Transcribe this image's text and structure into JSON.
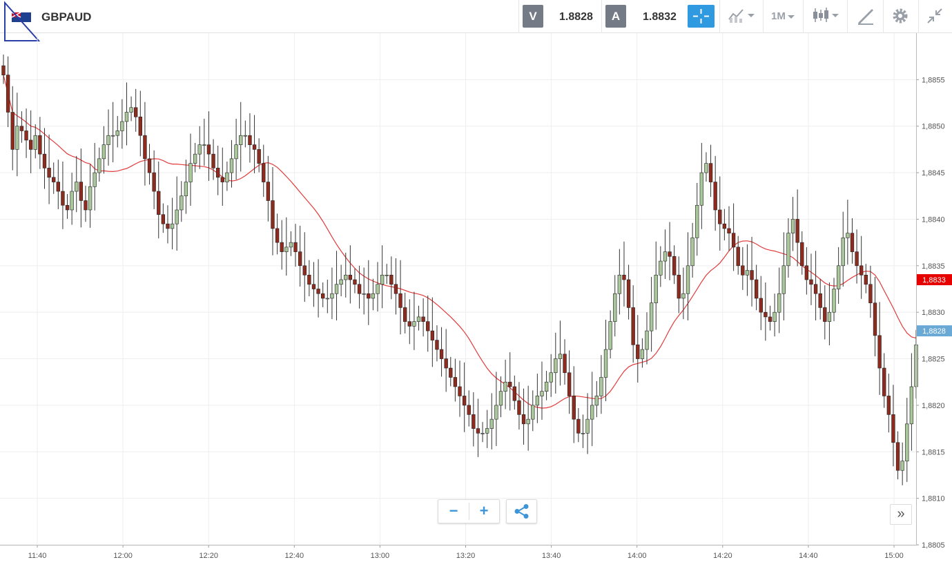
{
  "toolbar": {
    "symbol": "GBPAUD",
    "sell_label": "V",
    "sell_price": "1.8828",
    "buy_label": "A",
    "buy_price": "1.8832",
    "timeframe": "1M",
    "accent_color": "#2f9ae0"
  },
  "controls": {
    "zoom_out": "−",
    "zoom_in": "+",
    "scroll_right": "»"
  },
  "chart_data": {
    "type": "candlestick",
    "symbol": "GBPAUD",
    "interval": "1M",
    "grid": true,
    "y_range": [
      1.8805,
      1.886
    ],
    "y_ticks": [
      "1,8855",
      "1,8850",
      "1,8845",
      "1,8840",
      "1,8835",
      "1,8830",
      "1,8825",
      "1,8820",
      "1,8815",
      "1,8810",
      "1,8805"
    ],
    "x_ticks": [
      "11:40",
      "12:00",
      "12:20",
      "12:40",
      "13:00",
      "13:20",
      "13:40",
      "14:00",
      "14:20",
      "14:40",
      "15:00"
    ],
    "price_labels": [
      {
        "text": "1,8833",
        "value": 1.88335,
        "color": "#e60000"
      },
      {
        "text": "1,8828",
        "value": 1.8828,
        "color": "#6aa9d6"
      }
    ],
    "colors": {
      "up": "#a9c79a",
      "down": "#8e2b1f",
      "moving_average": "#e23a3a"
    },
    "closes": [
      1.88555,
      1.88515,
      1.88475,
      1.885,
      1.88495,
      1.88485,
      1.88475,
      1.8849,
      1.8847,
      1.88455,
      1.88445,
      1.8844,
      1.8843,
      1.88415,
      1.8841,
      1.8843,
      1.8844,
      1.8842,
      1.8841,
      1.88435,
      1.8845,
      1.88465,
      1.8848,
      1.8849,
      1.8849,
      1.88495,
      1.88505,
      1.88515,
      1.8852,
      1.8851,
      1.8849,
      1.88465,
      1.8845,
      1.8843,
      1.88405,
      1.88395,
      1.8839,
      1.88395,
      1.8841,
      1.88425,
      1.8844,
      1.8846,
      1.8847,
      1.8848,
      1.8848,
      1.8847,
      1.88455,
      1.88445,
      1.8844,
      1.8845,
      1.88465,
      1.8848,
      1.8849,
      1.8849,
      1.8848,
      1.88475,
      1.8846,
      1.8844,
      1.8842,
      1.8839,
      1.88375,
      1.88365,
      1.8837,
      1.88375,
      1.88365,
      1.8835,
      1.8834,
      1.8833,
      1.88325,
      1.8832,
      1.88315,
      1.88315,
      1.8832,
      1.8833,
      1.88335,
      1.8834,
      1.88335,
      1.8833,
      1.8832,
      1.8832,
      1.88315,
      1.8832,
      1.8833,
      1.8834,
      1.8834,
      1.8833,
      1.8832,
      1.88305,
      1.8829,
      1.88285,
      1.8829,
      1.88295,
      1.8829,
      1.8828,
      1.8827,
      1.8826,
      1.8825,
      1.8824,
      1.8823,
      1.8822,
      1.8821,
      1.882,
      1.8819,
      1.88175,
      1.8817,
      1.8817,
      1.88175,
      1.88185,
      1.882,
      1.88215,
      1.88225,
      1.8822,
      1.88205,
      1.8819,
      1.8818,
      1.88185,
      1.882,
      1.8821,
      1.88215,
      1.88225,
      1.88235,
      1.8825,
      1.88255,
      1.88235,
      1.8821,
      1.88185,
      1.8817,
      1.8817,
      1.88185,
      1.882,
      1.8821,
      1.8823,
      1.8826,
      1.8829,
      1.8832,
      1.8834,
      1.88335,
      1.88305,
      1.88265,
      1.8825,
      1.8826,
      1.8828,
      1.8831,
      1.8834,
      1.88355,
      1.88365,
      1.8836,
      1.8834,
      1.88315,
      1.8832,
      1.8835,
      1.8838,
      1.88415,
      1.8845,
      1.8846,
      1.8844,
      1.8841,
      1.88395,
      1.8839,
      1.88385,
      1.8837,
      1.8835,
      1.8834,
      1.88345,
      1.88335,
      1.88315,
      1.883,
      1.88295,
      1.8829,
      1.883,
      1.8832,
      1.8835,
      1.88385,
      1.884,
      1.88375,
      1.8835,
      1.88335,
      1.8833,
      1.8832,
      1.88305,
      1.8829,
      1.883,
      1.88325,
      1.8835,
      1.8838,
      1.88385,
      1.88365,
      1.8835,
      1.8834,
      1.8833,
      1.8831,
      1.88275,
      1.8824,
      1.8821,
      1.8819,
      1.8816,
      1.8813,
      1.8814,
      1.8818,
      1.8822,
      1.88265
    ]
  }
}
